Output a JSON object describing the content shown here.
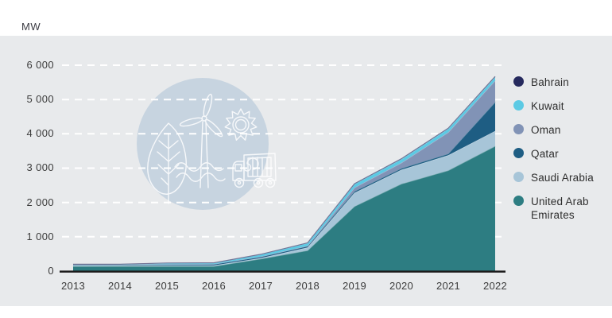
{
  "page": {
    "background": "#ffffff",
    "panel_background": "#e8eaec",
    "axis_color": "#1c1c1c",
    "grid_color": "#ffffff",
    "decoration_circle_color": "#c5d3df"
  },
  "panel": {
    "unit_label": "MW"
  },
  "decoration": {
    "name": "sustainability-line-art",
    "icons": [
      "leaf",
      "wind-turbine",
      "sun",
      "waves",
      "recycling-truck"
    ]
  },
  "chart_data": {
    "type": "area",
    "stacked": true,
    "title": "",
    "ylabel": "MW",
    "xlabel": "",
    "grid": "horizontal-dashed",
    "legend_position": "right",
    "categories": [
      "2013",
      "2014",
      "2015",
      "2016",
      "2017",
      "2018",
      "2019",
      "2020",
      "2021",
      "2022"
    ],
    "ylim": [
      0,
      6000
    ],
    "yticks": [
      0,
      1000,
      2000,
      3000,
      4000,
      5000,
      6000
    ],
    "ytick_labels": [
      "0",
      "1 000",
      "2 000",
      "3 000",
      "4 000",
      "5 000",
      "6 000"
    ],
    "stack_order_bottom_to_top": [
      "United Arab Emirates",
      "Saudi Arabia",
      "Qatar",
      "Oman",
      "Kuwait",
      "Bahrain"
    ],
    "series": [
      {
        "name": "Bahrain",
        "color": "#262a5e",
        "values": [
          6,
          6,
          6,
          6,
          6,
          6,
          6,
          12,
          12,
          12
        ]
      },
      {
        "name": "Kuwait",
        "color": "#5ccae4",
        "values": [
          1,
          1,
          31,
          31,
          61,
          79,
          106,
          106,
          106,
          106
        ]
      },
      {
        "name": "Oman",
        "color": "#8193b6",
        "values": [
          1,
          1,
          1,
          1,
          1,
          8,
          108,
          159,
          625,
          625
        ]
      },
      {
        "name": "Qatar",
        "color": "#1e5d83",
        "values": [
          28,
          28,
          33,
          38,
          41,
          41,
          43,
          43,
          43,
          843
        ]
      },
      {
        "name": "Saudi Arabia",
        "color": "#a7c5d8",
        "values": [
          24,
          24,
          24,
          24,
          24,
          89,
          397,
          413,
          443,
          443
        ]
      },
      {
        "name": "United Arab Emirates",
        "color": "#2d7d82",
        "values": [
          140,
          141,
          141,
          141,
          356,
          599,
          1885,
          2540,
          2933,
          3641
        ]
      }
    ]
  }
}
